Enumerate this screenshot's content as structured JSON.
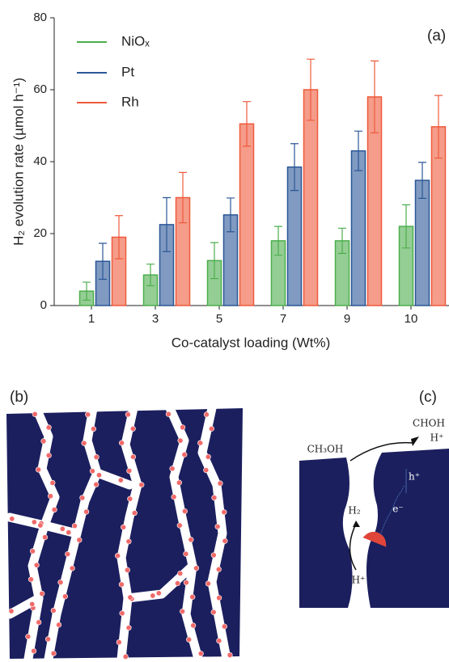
{
  "chart_data": {
    "type": "bar",
    "panel_label": "(a)",
    "y_label": "H₂ evolution rate (µmol h⁻¹)",
    "x_label": "Co-catalyst loading (Wt%)",
    "categories": [
      "1",
      "3",
      "5",
      "7",
      "9",
      "10"
    ],
    "series": [
      {
        "name": "NiOₓ",
        "color": "#4cae4c",
        "values": [
          4,
          8.5,
          12.5,
          18,
          18,
          22
        ],
        "errors": [
          2.5,
          3,
          5,
          4,
          3.5,
          6
        ]
      },
      {
        "name": "Pt",
        "color": "#2b5797",
        "values": [
          12.3,
          22.5,
          25.2,
          38.5,
          43,
          34.8
        ],
        "errors": [
          5,
          7.5,
          4.7,
          6.5,
          5.5,
          5
        ]
      },
      {
        "name": "Rh",
        "color": "#ee5a3c",
        "values": [
          19,
          30,
          50.5,
          60,
          58,
          49.7
        ],
        "errors": [
          6,
          7,
          6.2,
          8.5,
          10,
          8.7
        ]
      }
    ],
    "ylim": [
      0,
      80
    ],
    "yticks": [
      0,
      20,
      40,
      60,
      80
    ],
    "legend": "upper left"
  },
  "panel_b": {
    "label": "(b)"
  },
  "panel_c": {
    "label": "(c)",
    "labels": [
      "CH₃OH",
      "CHOH",
      "H⁺",
      "h⁺",
      "e⁻",
      "H₂",
      "H⁺"
    ]
  }
}
